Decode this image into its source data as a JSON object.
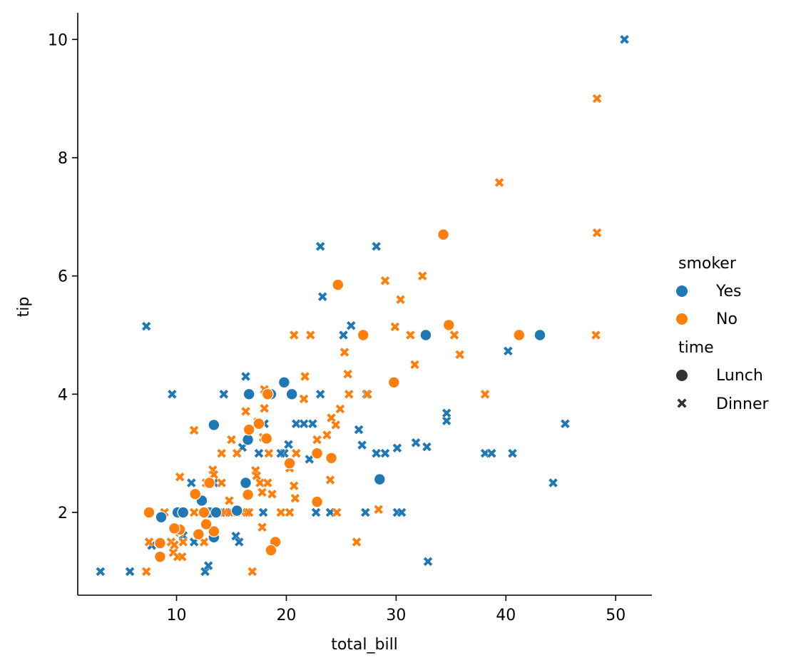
{
  "chart_data": {
    "type": "scatter",
    "xlabel": "total_bill",
    "ylabel": "tip",
    "xlim": [
      1.0,
      53.3
    ],
    "ylim": [
      0.6,
      10.45
    ],
    "xticks": [
      "10",
      "20",
      "30",
      "40",
      "50"
    ],
    "yticks": [
      "2",
      "4",
      "6",
      "8",
      "10"
    ],
    "legend": {
      "placement": "right",
      "hue_title": "smoker",
      "hue_entries": [
        {
          "label": "Yes",
          "color": "#1f77b4"
        },
        {
          "label": "No",
          "color": "#ff7f0e"
        }
      ],
      "style_title": "time",
      "style_entries": [
        {
          "label": "Lunch",
          "marker": "circle"
        },
        {
          "label": "Dinner",
          "marker": "x"
        }
      ]
    },
    "series": [
      {
        "smoker": "Yes",
        "time": "Dinner",
        "color": "#1f77b4",
        "marker": "x",
        "points": [
          [
            50.8,
            10.0
          ],
          [
            32.9,
            1.17
          ],
          [
            3.07,
            1.0
          ],
          [
            5.75,
            1.0
          ],
          [
            7.25,
            5.15
          ],
          [
            9.6,
            4.0
          ],
          [
            7.74,
            1.44
          ],
          [
            10.6,
            1.61
          ],
          [
            11.35,
            2.5
          ],
          [
            11.6,
            1.5
          ],
          [
            12.6,
            1.0
          ],
          [
            12.9,
            1.1
          ],
          [
            13.4,
            2.5
          ],
          [
            14.3,
            4.0
          ],
          [
            15.4,
            1.6
          ],
          [
            15.7,
            1.5
          ],
          [
            16.3,
            4.3
          ],
          [
            16.6,
            4.0
          ],
          [
            17.5,
            3.0
          ],
          [
            17.9,
            2.0
          ],
          [
            18.0,
            3.5
          ],
          [
            19.8,
            3.0
          ],
          [
            20.6,
            4.0
          ],
          [
            20.9,
            3.5
          ],
          [
            21.6,
            3.5
          ],
          [
            22.1,
            2.9
          ],
          [
            22.4,
            3.5
          ],
          [
            22.7,
            2.0
          ],
          [
            23.1,
            4.0
          ],
          [
            23.1,
            6.5
          ],
          [
            23.3,
            5.65
          ],
          [
            24.0,
            2.0
          ],
          [
            25.2,
            5.0
          ],
          [
            25.9,
            5.16
          ],
          [
            26.6,
            3.4
          ],
          [
            26.9,
            3.14
          ],
          [
            27.2,
            2.0
          ],
          [
            27.3,
            4.0
          ],
          [
            28.2,
            6.5
          ],
          [
            28.2,
            3.0
          ],
          [
            29.0,
            3.0
          ],
          [
            30.1,
            3.09
          ],
          [
            30.1,
            2.0
          ],
          [
            30.5,
            2.0
          ],
          [
            31.8,
            3.18
          ],
          [
            32.8,
            3.11
          ],
          [
            34.6,
            3.55
          ],
          [
            34.6,
            3.68
          ],
          [
            38.1,
            3.0
          ],
          [
            38.7,
            3.0
          ],
          [
            40.2,
            4.73
          ],
          [
            40.6,
            3.0
          ],
          [
            44.3,
            2.5
          ],
          [
            45.4,
            3.5
          ],
          [
            12.4,
            2.2
          ],
          [
            13.0,
            2.0
          ],
          [
            14.5,
            2.0
          ],
          [
            16.0,
            3.1
          ],
          [
            19.5,
            3.0
          ],
          [
            20.2,
            3.15
          ]
        ]
      },
      {
        "smoker": "No",
        "time": "Dinner",
        "color": "#ff7f0e",
        "marker": "x",
        "points": [
          [
            48.3,
            9.0
          ],
          [
            39.4,
            7.58
          ],
          [
            48.3,
            6.73
          ],
          [
            29.0,
            5.92
          ],
          [
            32.4,
            6.0
          ],
          [
            30.4,
            5.6
          ],
          [
            48.2,
            5.0
          ],
          [
            35.3,
            5.0
          ],
          [
            29.9,
            5.14
          ],
          [
            31.3,
            5.0
          ],
          [
            35.8,
            4.67
          ],
          [
            31.7,
            4.5
          ],
          [
            25.3,
            4.71
          ],
          [
            25.6,
            4.34
          ],
          [
            20.7,
            5.0
          ],
          [
            22.2,
            5.0
          ],
          [
            21.7,
            4.3
          ],
          [
            25.7,
            4.0
          ],
          [
            27.4,
            4.0
          ],
          [
            38.1,
            4.0
          ],
          [
            21.6,
            3.92
          ],
          [
            24.9,
            3.75
          ],
          [
            24.1,
            3.6
          ],
          [
            24.5,
            3.48
          ],
          [
            23.7,
            3.31
          ],
          [
            22.8,
            3.23
          ],
          [
            16.3,
            3.71
          ],
          [
            18.0,
            3.76
          ],
          [
            18.0,
            4.08
          ],
          [
            17.8,
            2.34
          ],
          [
            17.4,
            3.53
          ],
          [
            17.9,
            3.27
          ],
          [
            18.4,
            3.0
          ],
          [
            15.0,
            3.23
          ],
          [
            14.1,
            3.0
          ],
          [
            11.6,
            3.39
          ],
          [
            15.5,
            3.0
          ],
          [
            13.3,
            2.72
          ],
          [
            13.4,
            2.64
          ],
          [
            14.1,
            2.5
          ],
          [
            14.8,
            2.2
          ],
          [
            14.3,
            2.0
          ],
          [
            17.2,
            2.71
          ],
          [
            17.3,
            2.62
          ],
          [
            17.6,
            2.5
          ],
          [
            18.3,
            2.5
          ],
          [
            18.7,
            2.31
          ],
          [
            20.3,
            2.75
          ],
          [
            20.7,
            2.45
          ],
          [
            20.8,
            2.24
          ],
          [
            24.0,
            2.55
          ],
          [
            19.5,
            2.0
          ],
          [
            20.3,
            2.0
          ],
          [
            20.9,
            3.0
          ],
          [
            24.6,
            2.0
          ],
          [
            26.4,
            1.5
          ],
          [
            28.4,
            2.05
          ],
          [
            16.9,
            1.0
          ],
          [
            17.8,
            1.75
          ],
          [
            7.25,
            1.0
          ],
          [
            7.5,
            1.5
          ],
          [
            8.5,
            1.5
          ],
          [
            9.5,
            1.5
          ],
          [
            9.7,
            1.32
          ],
          [
            10.1,
            1.25
          ],
          [
            10.3,
            1.66
          ],
          [
            10.5,
            1.25
          ],
          [
            10.6,
            1.5
          ],
          [
            10.3,
            2.6
          ],
          [
            11.6,
            2.0
          ],
          [
            12.5,
            1.5
          ],
          [
            12.7,
            2.5
          ],
          [
            13.0,
            2.0
          ],
          [
            13.4,
            2.0
          ],
          [
            14.8,
            2.0
          ],
          [
            15.5,
            2.0
          ],
          [
            15.9,
            2.0
          ],
          [
            16.4,
            2.0
          ],
          [
            16.6,
            2.0
          ],
          [
            8.9,
            2.0
          ],
          [
            9.8,
            1.45
          ]
        ]
      },
      {
        "smoker": "Yes",
        "time": "Lunch",
        "color": "#1f77b4",
        "marker": "circle",
        "points": [
          [
            43.1,
            5.0
          ],
          [
            32.7,
            5.0
          ],
          [
            28.5,
            2.56
          ],
          [
            19.8,
            4.2
          ],
          [
            20.5,
            4.0
          ],
          [
            18.6,
            4.0
          ],
          [
            16.6,
            4.0
          ],
          [
            16.5,
            3.23
          ],
          [
            13.4,
            3.48
          ],
          [
            16.3,
            2.5
          ],
          [
            15.5,
            2.03
          ],
          [
            13.4,
            1.58
          ],
          [
            12.3,
            2.2
          ],
          [
            12.7,
            2.0
          ],
          [
            13.0,
            2.0
          ],
          [
            13.6,
            2.0
          ],
          [
            10.1,
            2.0
          ],
          [
            10.6,
            2.0
          ],
          [
            8.6,
            1.92
          ]
        ]
      },
      {
        "smoker": "No",
        "time": "Lunch",
        "color": "#ff7f0e",
        "marker": "circle",
        "points": [
          [
            34.3,
            6.7
          ],
          [
            24.7,
            5.85
          ],
          [
            27.0,
            5.0
          ],
          [
            41.2,
            5.0
          ],
          [
            34.8,
            5.17
          ],
          [
            29.8,
            4.2
          ],
          [
            24.1,
            2.92
          ],
          [
            22.8,
            3.0
          ],
          [
            22.8,
            2.18
          ],
          [
            20.3,
            2.83
          ],
          [
            18.2,
            3.25
          ],
          [
            16.6,
            3.4
          ],
          [
            17.5,
            3.5
          ],
          [
            18.3,
            4.0
          ],
          [
            16.5,
            2.3
          ],
          [
            19.0,
            1.5
          ],
          [
            18.6,
            1.36
          ],
          [
            13.4,
            1.68
          ],
          [
            12.7,
            1.8
          ],
          [
            11.7,
            2.31
          ],
          [
            12.0,
            1.63
          ],
          [
            12.5,
            2.0
          ],
          [
            13.0,
            2.5
          ],
          [
            10.3,
            1.71
          ],
          [
            9.8,
            1.73
          ],
          [
            8.5,
            1.48
          ],
          [
            8.5,
            1.25
          ],
          [
            7.5,
            2.0
          ]
        ]
      }
    ]
  }
}
